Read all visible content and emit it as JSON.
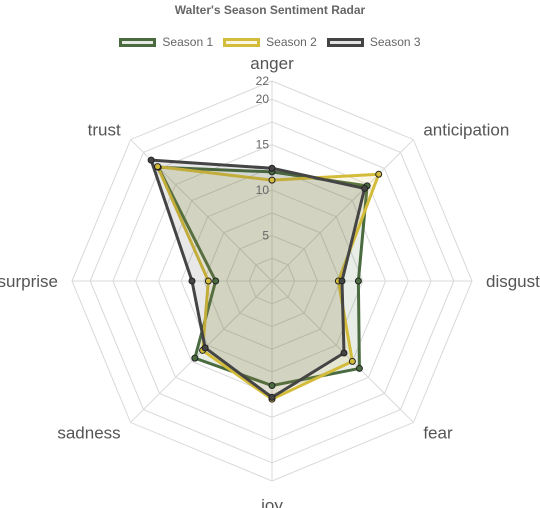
{
  "chart_data": {
    "type": "radar",
    "title": "Walter's Season Sentiment Radar",
    "categories": [
      "anger",
      "anticipation",
      "disgust",
      "fear",
      "joy",
      "sadness",
      "surprise",
      "trust"
    ],
    "r_ticks": [
      "5",
      "10",
      "15",
      "20",
      "22"
    ],
    "r_tick_values": [
      5,
      10,
      15,
      20,
      22
    ],
    "r_max": 22,
    "grid": true,
    "legend_position": "top",
    "series": [
      {
        "name": "Season 1",
        "color": "#4a6b3f",
        "values": [
          12.0,
          14.8,
          9.5,
          13.6,
          11.5,
          12.0,
          6.2,
          17.7
        ]
      },
      {
        "name": "Season 2",
        "color": "#d4bc3b",
        "values": [
          11.1,
          16.6,
          7.3,
          12.5,
          13.0,
          10.8,
          7.0,
          17.8
        ]
      },
      {
        "name": "Season 3",
        "color": "#444444",
        "values": [
          12.4,
          14.4,
          7.7,
          11.2,
          12.8,
          10.4,
          8.8,
          18.8
        ]
      }
    ]
  }
}
